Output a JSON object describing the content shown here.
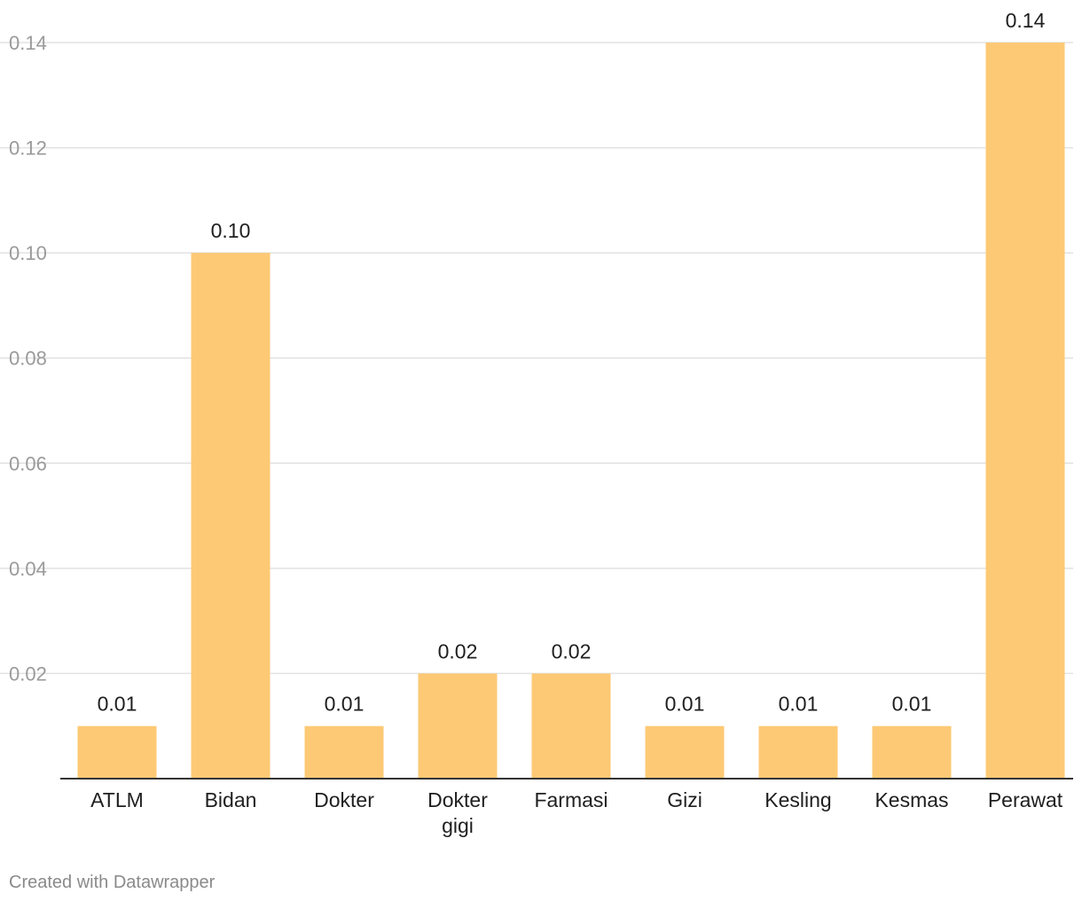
{
  "chart_data": {
    "type": "bar",
    "categories": [
      [
        "ATLM"
      ],
      [
        "Bidan"
      ],
      [
        "Dokter"
      ],
      [
        "Dokter",
        "gigi"
      ],
      [
        "Farmasi"
      ],
      [
        "Gizi"
      ],
      [
        "Kesling"
      ],
      [
        "Kesmas"
      ],
      [
        "Perawat"
      ]
    ],
    "values": [
      0.01,
      0.1,
      0.01,
      0.02,
      0.02,
      0.01,
      0.01,
      0.01,
      0.14
    ],
    "value_labels": [
      "0.01",
      "0.10",
      "0.01",
      "0.02",
      "0.02",
      "0.01",
      "0.01",
      "0.01",
      "0.14"
    ],
    "y_ticks": [
      0.02,
      0.04,
      0.06,
      0.08,
      0.1,
      0.12,
      0.14
    ],
    "y_tick_labels": [
      "0.02",
      "0.04",
      "0.06",
      "0.08",
      "0.10",
      "0.12",
      "0.14"
    ],
    "ylim": [
      0,
      0.14
    ],
    "title": "",
    "xlabel": "",
    "ylabel": "",
    "grid": true,
    "bar_color": "#fdc975",
    "grid_color": "#e2e2e2",
    "axis_color": "#333333"
  },
  "footer": {
    "credit": "Created with Datawrapper"
  }
}
